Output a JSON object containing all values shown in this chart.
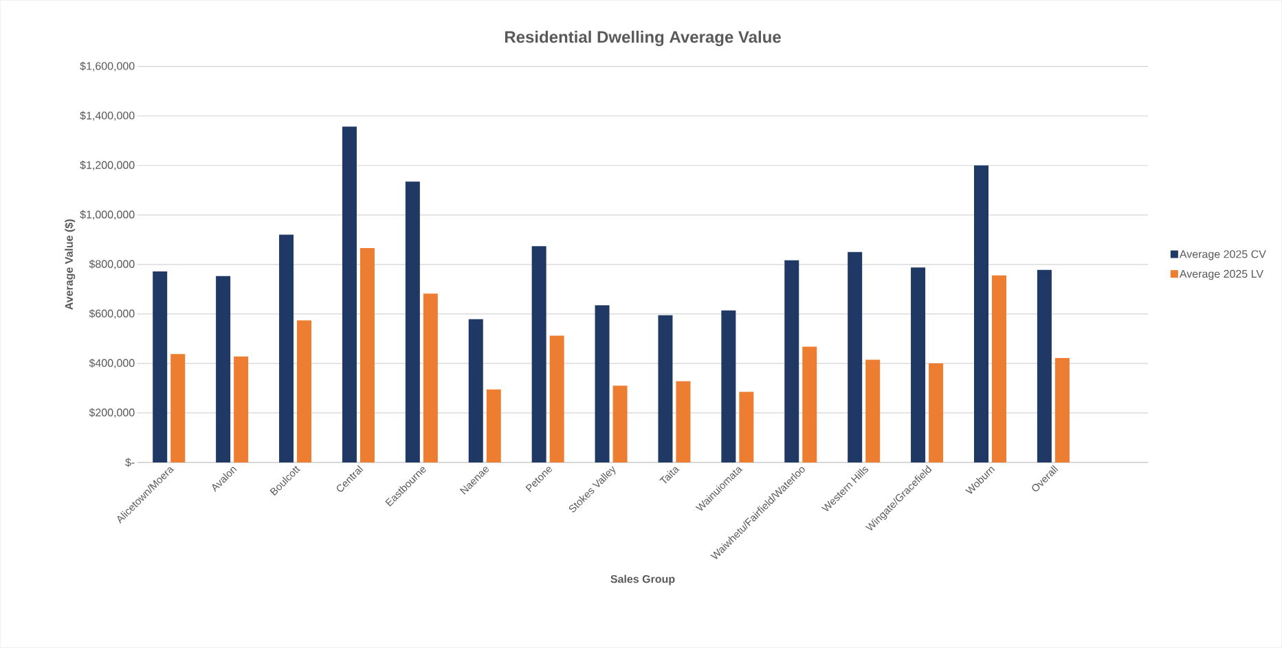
{
  "chart_data": {
    "type": "bar",
    "title": "Residential Dwelling Average Value",
    "xlabel": "Sales Group",
    "ylabel": "Average Value ($)",
    "categories": [
      "Alicetown/Moera",
      "Avalon",
      "Boulcott",
      "Central",
      "Eastbourne",
      "Naenae",
      "Petone",
      "Stokes Valley",
      "Taita",
      "Wainuiomata",
      "Waiwhetu/Fairfield/Waterloo",
      "Western Hills",
      "Wingate/Gracefield",
      "Woburn",
      "Overall"
    ],
    "series": [
      {
        "name": "Average 2025 CV",
        "color": "#1f3864",
        "values": [
          772000,
          753000,
          920000,
          1357000,
          1135000,
          579000,
          874000,
          635000,
          595000,
          614000,
          817000,
          850000,
          788000,
          1200000,
          778000
        ]
      },
      {
        "name": "Average 2025 LV",
        "color": "#ed7d31",
        "values": [
          438000,
          428000,
          574000,
          866000,
          682000,
          295000,
          512000,
          310000,
          328000,
          285000,
          468000,
          415000,
          400000,
          756000,
          422000
        ]
      }
    ],
    "ylim": [
      0,
      1600000
    ],
    "yticks": [
      {
        "value": 0,
        "label": "$-"
      },
      {
        "value": 200000,
        "label": "$200,000"
      },
      {
        "value": 400000,
        "label": "$400,000"
      },
      {
        "value": 600000,
        "label": "$600,000"
      },
      {
        "value": 800000,
        "label": "$800,000"
      },
      {
        "value": 1000000,
        "label": "$1,000,000"
      },
      {
        "value": 1200000,
        "label": "$1,200,000"
      },
      {
        "value": 1400000,
        "label": "$1,400,000"
      },
      {
        "value": 1600000,
        "label": "$1,600,000"
      }
    ],
    "grid": "y",
    "legend": "right"
  }
}
